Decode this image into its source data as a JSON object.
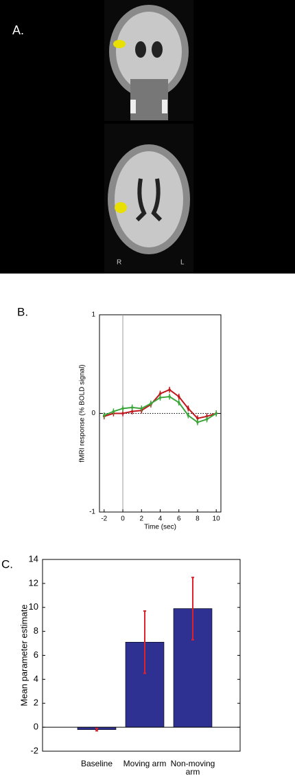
{
  "panel_a": {
    "label": "A.",
    "orientation_labels": [
      "R",
      "L"
    ]
  },
  "chart_data": [
    {
      "type": "line",
      "panel_label": "B.",
      "xlabel": "Time (sec)",
      "ylabel": "fMRI response (% BOLD signal)",
      "x": [
        -2,
        -1,
        0,
        1,
        2,
        3,
        4,
        5,
        6,
        7,
        8,
        9,
        10
      ],
      "series": [
        {
          "color": "#c0161b",
          "values": [
            -0.03,
            0.0,
            0.0,
            0.02,
            0.03,
            0.09,
            0.2,
            0.24,
            0.17,
            0.05,
            -0.05,
            -0.03,
            0.0
          ],
          "errors": [
            0.03,
            0.03,
            0.03,
            0.03,
            0.03,
            0.03,
            0.03,
            0.03,
            0.03,
            0.03,
            0.03,
            0.03,
            0.03
          ]
        },
        {
          "color": "#3aa53a",
          "values": [
            -0.02,
            0.02,
            0.05,
            0.06,
            0.05,
            0.1,
            0.16,
            0.17,
            0.11,
            -0.02,
            -0.09,
            -0.06,
            0.0
          ],
          "errors": [
            0.03,
            0.03,
            0.03,
            0.03,
            0.03,
            0.03,
            0.03,
            0.03,
            0.03,
            0.03,
            0.03,
            0.03,
            0.03
          ]
        }
      ],
      "xlim": [
        -2.5,
        10.5
      ],
      "xticks": [
        -2,
        0,
        2,
        4,
        6,
        8,
        10
      ],
      "ylim": [
        -1,
        1
      ],
      "yticks": [
        -1,
        0,
        1
      ]
    },
    {
      "type": "bar",
      "panel_label": "C.",
      "ylabel": "Mean parameter estimate",
      "categories": [
        "Baseline",
        "Moving arm",
        "Non-moving arm"
      ],
      "values": [
        -0.2,
        7.1,
        9.9
      ],
      "errors": [
        0.1,
        2.6,
        2.6
      ],
      "color": "#2e3192",
      "error_color": "#e0202a",
      "ylim": [
        -2,
        14
      ],
      "yticks": [
        -2,
        0,
        2,
        4,
        6,
        8,
        10,
        12,
        14
      ]
    }
  ]
}
